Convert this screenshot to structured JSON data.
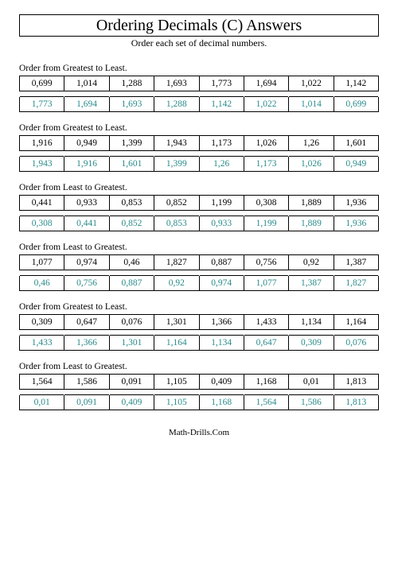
{
  "title": "Ordering Decimals (C) Answers",
  "subtitle": "Order each set of decimal numbers.",
  "footer": "Math-Drills.Com",
  "colors": {
    "answer_text": "#2a8a8a",
    "border": "#000000",
    "background": "#ffffff"
  },
  "fonts": {
    "title_size_pt": 20,
    "body_size_pt": 11.5,
    "subtitle_size_pt": 12,
    "footer_size_pt": 11,
    "family": "Times New Roman"
  },
  "problems": [
    {
      "prompt": "Order from Greatest to Least.",
      "given": [
        "0,699",
        "1,014",
        "1,288",
        "1,693",
        "1,773",
        "1,694",
        "1,022",
        "1,142"
      ],
      "answer": [
        "1,773",
        "1,694",
        "1,693",
        "1,288",
        "1,142",
        "1,022",
        "1,014",
        "0,699"
      ]
    },
    {
      "prompt": "Order from Greatest to Least.",
      "given": [
        "1,916",
        "0,949",
        "1,399",
        "1,943",
        "1,173",
        "1,026",
        "1,26",
        "1,601"
      ],
      "answer": [
        "1,943",
        "1,916",
        "1,601",
        "1,399",
        "1,26",
        "1,173",
        "1,026",
        "0,949"
      ]
    },
    {
      "prompt": "Order from Least to Greatest.",
      "given": [
        "0,441",
        "0,933",
        "0,853",
        "0,852",
        "1,199",
        "0,308",
        "1,889",
        "1,936"
      ],
      "answer": [
        "0,308",
        "0,441",
        "0,852",
        "0,853",
        "0,933",
        "1,199",
        "1,889",
        "1,936"
      ]
    },
    {
      "prompt": "Order from Least to Greatest.",
      "given": [
        "1,077",
        "0,974",
        "0,46",
        "1,827",
        "0,887",
        "0,756",
        "0,92",
        "1,387"
      ],
      "answer": [
        "0,46",
        "0,756",
        "0,887",
        "0,92",
        "0,974",
        "1,077",
        "1,387",
        "1,827"
      ]
    },
    {
      "prompt": "Order from Greatest to Least.",
      "given": [
        "0,309",
        "0,647",
        "0,076",
        "1,301",
        "1,366",
        "1,433",
        "1,134",
        "1,164"
      ],
      "answer": [
        "1,433",
        "1,366",
        "1,301",
        "1,164",
        "1,134",
        "0,647",
        "0,309",
        "0,076"
      ]
    },
    {
      "prompt": "Order from Least to Greatest.",
      "given": [
        "1,564",
        "1,586",
        "0,091",
        "1,105",
        "0,409",
        "1,168",
        "0,01",
        "1,813"
      ],
      "answer": [
        "0,01",
        "0,091",
        "0,409",
        "1,105",
        "1,168",
        "1,564",
        "1,586",
        "1,813"
      ]
    }
  ]
}
